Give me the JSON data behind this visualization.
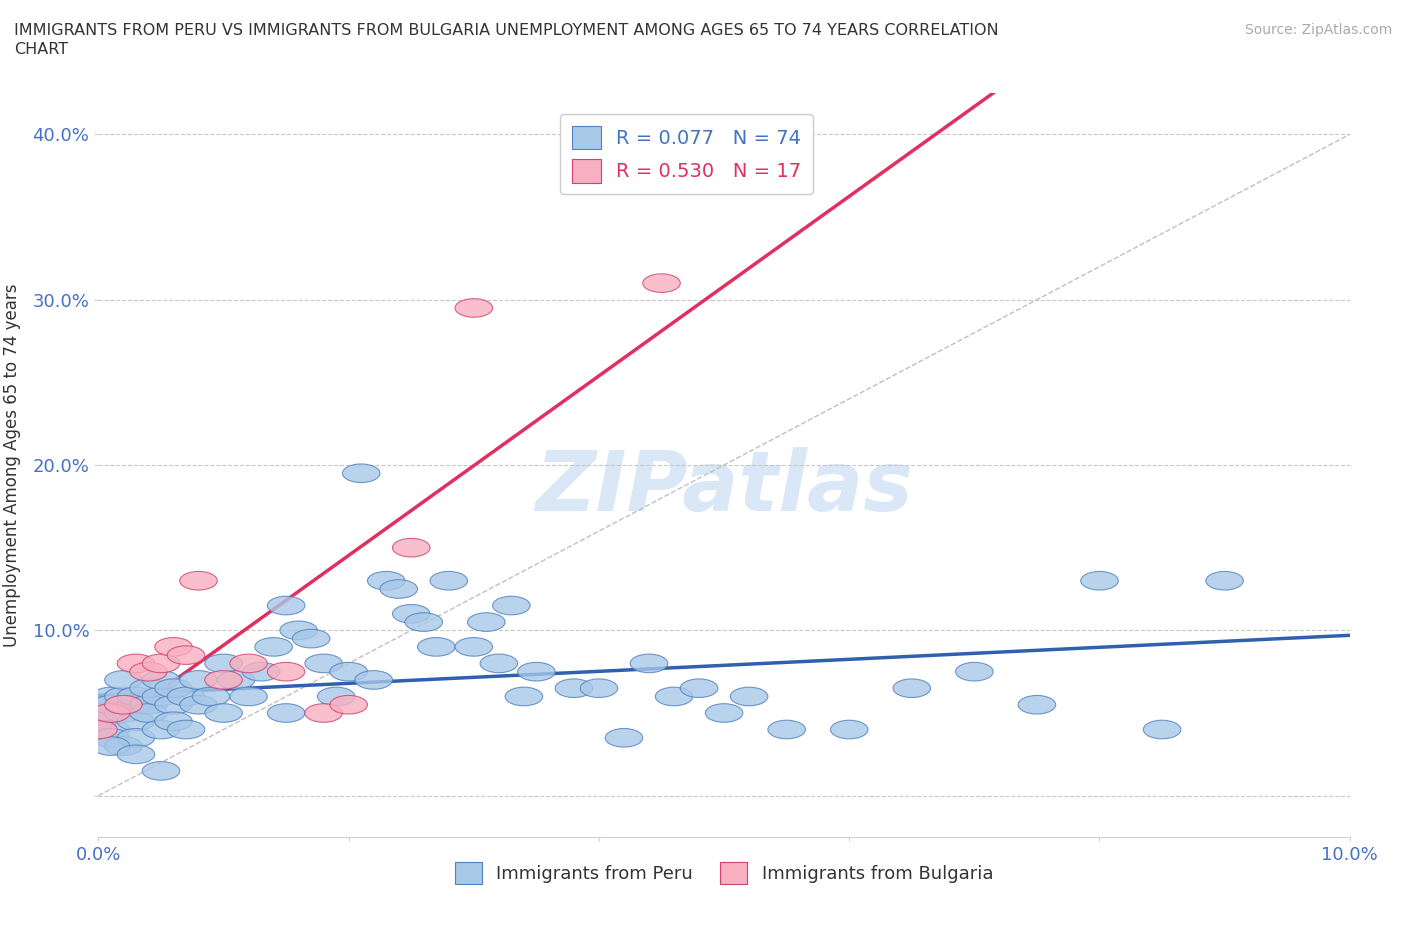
{
  "title_line1": "IMMIGRANTS FROM PERU VS IMMIGRANTS FROM BULGARIA UNEMPLOYMENT AMONG AGES 65 TO 74 YEARS CORRELATION",
  "title_line2": "CHART",
  "source_text": "Source: ZipAtlas.com",
  "ylabel": "Unemployment Among Ages 65 to 74 years",
  "xmin": 0.0,
  "xmax": 0.1,
  "ymin": -0.025,
  "ymax": 0.425,
  "peru_color": "#a8c8e8",
  "peru_edge_color": "#5080c0",
  "bulgaria_color": "#f8b0c0",
  "bulgaria_edge_color": "#d04070",
  "peru_line_color": "#3060b0",
  "bulgaria_line_color": "#e03060",
  "diag_line_color": "#c0c0c0",
  "peru_R": 0.077,
  "peru_N": 74,
  "bulgaria_R": 0.53,
  "bulgaria_N": 17,
  "legend_peru_label": "Immigrants from Peru",
  "legend_bulgaria_label": "Immigrants from Bulgaria",
  "watermark": "ZIPatlas",
  "watermark_color": "#c0d8f0",
  "background_color": "#ffffff",
  "grid_color": "#c8c8c8",
  "peru_x": [
    0.0,
    0.0,
    0.001,
    0.001,
    0.001,
    0.001,
    0.002,
    0.002,
    0.002,
    0.002,
    0.003,
    0.003,
    0.003,
    0.003,
    0.004,
    0.004,
    0.004,
    0.005,
    0.005,
    0.005,
    0.006,
    0.006,
    0.006,
    0.007,
    0.007,
    0.008,
    0.008,
    0.009,
    0.01,
    0.01,
    0.011,
    0.012,
    0.013,
    0.014,
    0.015,
    0.015,
    0.016,
    0.017,
    0.018,
    0.019,
    0.02,
    0.021,
    0.022,
    0.023,
    0.024,
    0.025,
    0.026,
    0.027,
    0.028,
    0.03,
    0.031,
    0.032,
    0.033,
    0.034,
    0.035,
    0.038,
    0.04,
    0.042,
    0.044,
    0.046,
    0.048,
    0.05,
    0.052,
    0.055,
    0.06,
    0.065,
    0.07,
    0.075,
    0.08,
    0.085,
    0.001,
    0.003,
    0.005,
    0.09
  ],
  "peru_y": [
    0.05,
    0.045,
    0.06,
    0.04,
    0.055,
    0.035,
    0.06,
    0.05,
    0.07,
    0.03,
    0.055,
    0.045,
    0.06,
    0.035,
    0.055,
    0.05,
    0.065,
    0.06,
    0.04,
    0.07,
    0.055,
    0.065,
    0.045,
    0.06,
    0.04,
    0.07,
    0.055,
    0.06,
    0.08,
    0.05,
    0.07,
    0.06,
    0.075,
    0.09,
    0.115,
    0.05,
    0.1,
    0.095,
    0.08,
    0.06,
    0.075,
    0.195,
    0.07,
    0.13,
    0.125,
    0.11,
    0.105,
    0.09,
    0.13,
    0.09,
    0.105,
    0.08,
    0.115,
    0.06,
    0.075,
    0.065,
    0.065,
    0.035,
    0.08,
    0.06,
    0.065,
    0.05,
    0.06,
    0.04,
    0.04,
    0.065,
    0.075,
    0.055,
    0.13,
    0.04,
    0.03,
    0.025,
    0.015,
    0.13
  ],
  "bulgaria_x": [
    0.0,
    0.001,
    0.002,
    0.003,
    0.004,
    0.005,
    0.006,
    0.007,
    0.008,
    0.01,
    0.012,
    0.015,
    0.018,
    0.02,
    0.025,
    0.03,
    0.045
  ],
  "bulgaria_y": [
    0.04,
    0.05,
    0.055,
    0.08,
    0.075,
    0.08,
    0.09,
    0.085,
    0.13,
    0.07,
    0.08,
    0.075,
    0.05,
    0.055,
    0.15,
    0.295,
    0.31
  ]
}
